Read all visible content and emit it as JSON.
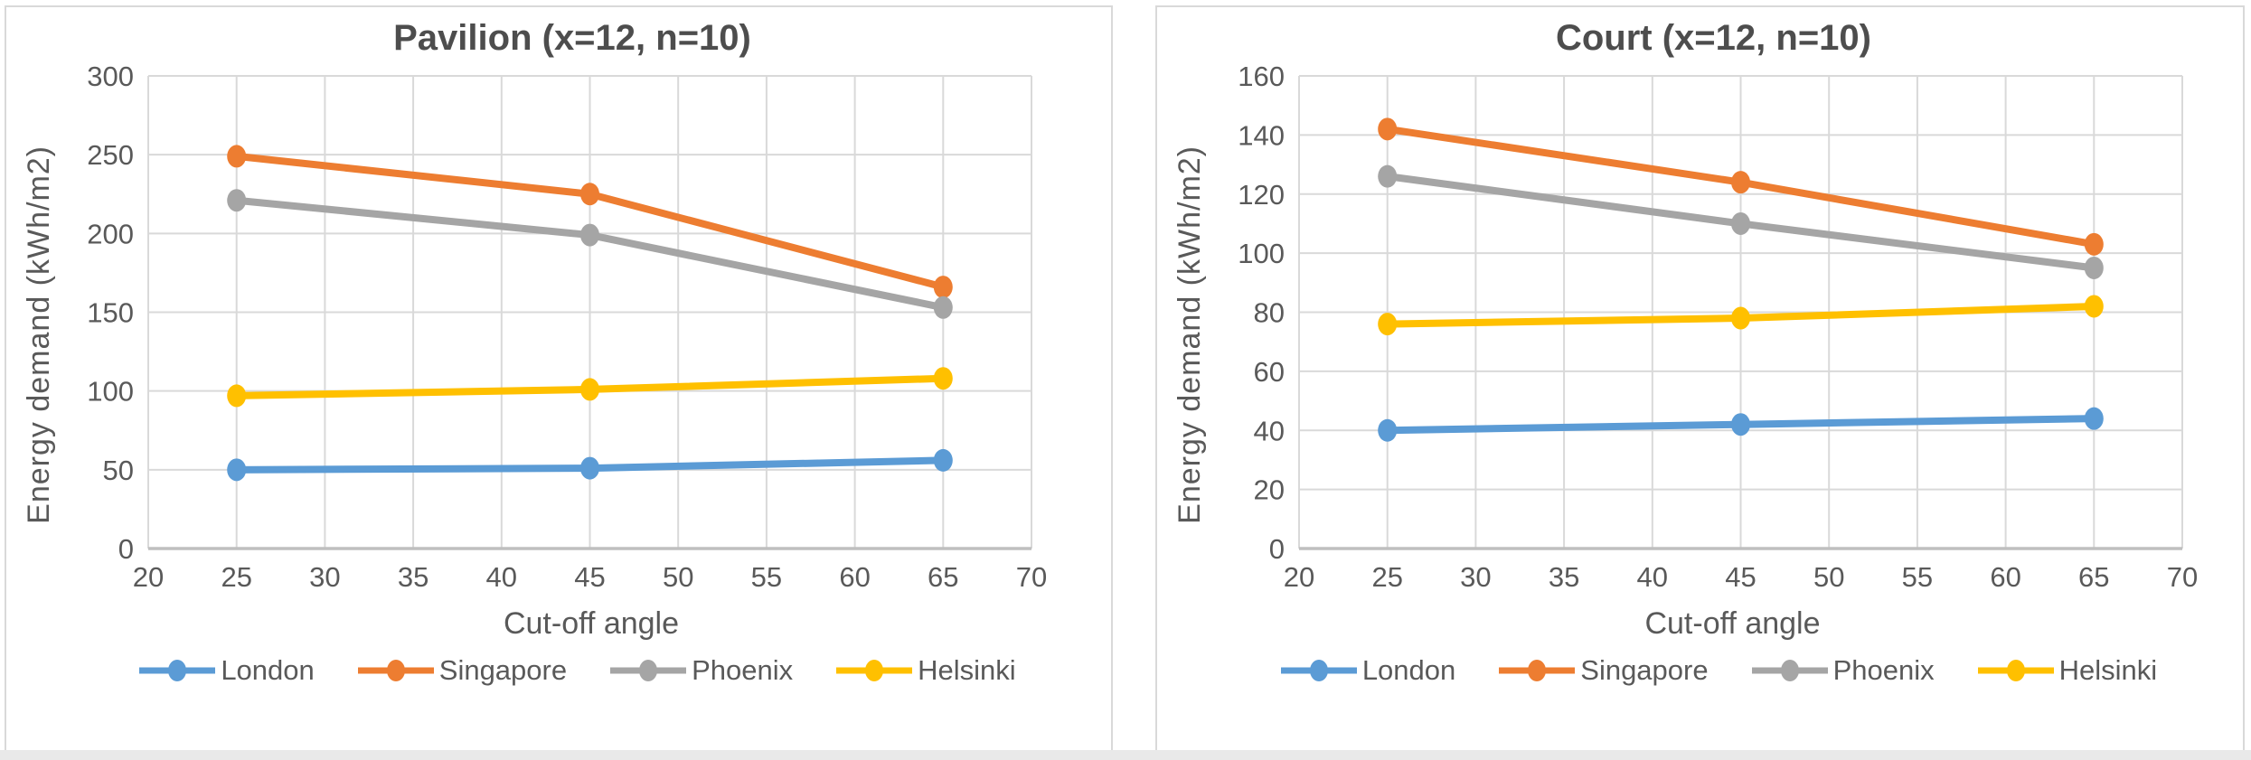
{
  "page": {
    "background": "#ffffff",
    "bottom_strip_color": "#e9e9e9"
  },
  "colors": {
    "grid": "#D9D9D9",
    "axis_line": "#BFBFBF",
    "tick_text": "#595959",
    "title_text": "#4d4d4d",
    "axis_title_text": "#595959",
    "card_border": "#D9D9D9"
  },
  "chart_data": [
    {
      "type": "line",
      "title": "Pavilion (x=12, n=10)",
      "xlabel": "Cut-off angle",
      "ylabel": "Energy demand (kWh/m2)",
      "xlim": [
        20,
        70
      ],
      "xstep": 5,
      "ylim": [
        0,
        300
      ],
      "ystep": 50,
      "grid": true,
      "legend_position": "bottom",
      "x": [
        25,
        45,
        65
      ],
      "series": [
        {
          "name": "London",
          "color": "#5B9BD5",
          "values": [
            50,
            51,
            56
          ]
        },
        {
          "name": "Singapore",
          "color": "#ED7D31",
          "values": [
            249,
            225,
            166
          ]
        },
        {
          "name": "Phoenix",
          "color": "#A5A5A5",
          "values": [
            221,
            199,
            153
          ]
        },
        {
          "name": "Helsinki",
          "color": "#FFC000",
          "values": [
            97,
            101,
            108
          ]
        }
      ]
    },
    {
      "type": "line",
      "title": "Court (x=12, n=10)",
      "xlabel": "Cut-off angle",
      "ylabel": "Energy demand (kWh/m2)",
      "xlim": [
        20,
        70
      ],
      "xstep": 5,
      "ylim": [
        0,
        160
      ],
      "ystep": 20,
      "grid": true,
      "legend_position": "bottom",
      "x": [
        25,
        45,
        65
      ],
      "series": [
        {
          "name": "London",
          "color": "#5B9BD5",
          "values": [
            40,
            42,
            44
          ]
        },
        {
          "name": "Singapore",
          "color": "#ED7D31",
          "values": [
            142,
            124,
            103
          ]
        },
        {
          "name": "Phoenix",
          "color": "#A5A5A5",
          "values": [
            126,
            110,
            95
          ]
        },
        {
          "name": "Helsinki",
          "color": "#FFC000",
          "values": [
            76,
            78,
            82
          ]
        }
      ]
    }
  ]
}
